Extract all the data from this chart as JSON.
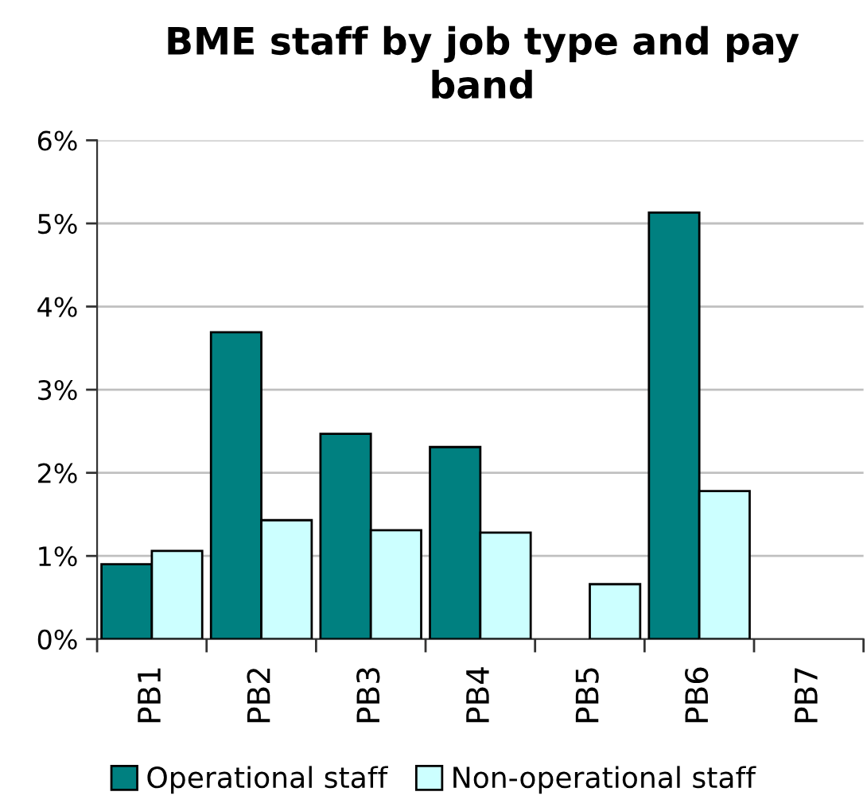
{
  "chart_data": {
    "type": "bar",
    "title": "BME staff by job type and pay band",
    "categories": [
      "PB1",
      "PB2",
      "PB3",
      "PB4",
      "PB5",
      "PB6",
      "PB7"
    ],
    "series": [
      {
        "name": "Operational staff",
        "color": "#008080",
        "values": [
          0.9,
          3.69,
          2.47,
          2.31,
          null,
          5.13,
          null
        ]
      },
      {
        "name": "Non-operational staff",
        "color": "#ccffff",
        "values": [
          1.06,
          1.43,
          1.31,
          1.28,
          0.66,
          1.78,
          null
        ]
      }
    ],
    "ylim": [
      0,
      6
    ],
    "yticks": [
      {
        "value": 0,
        "label": "0%"
      },
      {
        "value": 1,
        "label": "1%"
      },
      {
        "value": 2,
        "label": "2%"
      },
      {
        "value": 3,
        "label": "3%"
      },
      {
        "value": 4,
        "label": "4%"
      },
      {
        "value": 5,
        "label": "5%"
      },
      {
        "value": 6,
        "label": "6%"
      }
    ],
    "grid": "y",
    "legend": "bottom"
  }
}
